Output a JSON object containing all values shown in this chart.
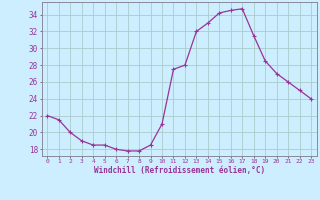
{
  "x": [
    0,
    1,
    2,
    3,
    4,
    5,
    6,
    7,
    8,
    9,
    10,
    11,
    12,
    13,
    14,
    15,
    16,
    17,
    18,
    19,
    20,
    21,
    22,
    23
  ],
  "y": [
    22,
    21.5,
    20,
    19,
    18.5,
    18.5,
    18,
    17.8,
    17.8,
    18.5,
    21,
    27.5,
    28,
    32,
    33,
    34.2,
    34.5,
    34.7,
    31.5,
    28.5,
    27,
    26,
    25,
    24
  ],
  "line_color": "#993399",
  "marker": "+",
  "marker_size": 3.5,
  "marker_lw": 0.8,
  "bg_color": "#cceeff",
  "grid_color": "#aacccc",
  "xlabel": "Windchill (Refroidissement éolien,°C)",
  "ylabel_ticks": [
    18,
    20,
    22,
    24,
    26,
    28,
    30,
    32,
    34
  ],
  "xticks": [
    0,
    1,
    2,
    3,
    4,
    5,
    6,
    7,
    8,
    9,
    10,
    11,
    12,
    13,
    14,
    15,
    16,
    17,
    18,
    19,
    20,
    21,
    22,
    23
  ],
  "ylim": [
    17.2,
    35.5
  ],
  "xlim": [
    -0.5,
    23.5
  ],
  "tick_color": "#993399",
  "font_color": "#993399",
  "line_width": 0.9,
  "spine_color": "#888899"
}
